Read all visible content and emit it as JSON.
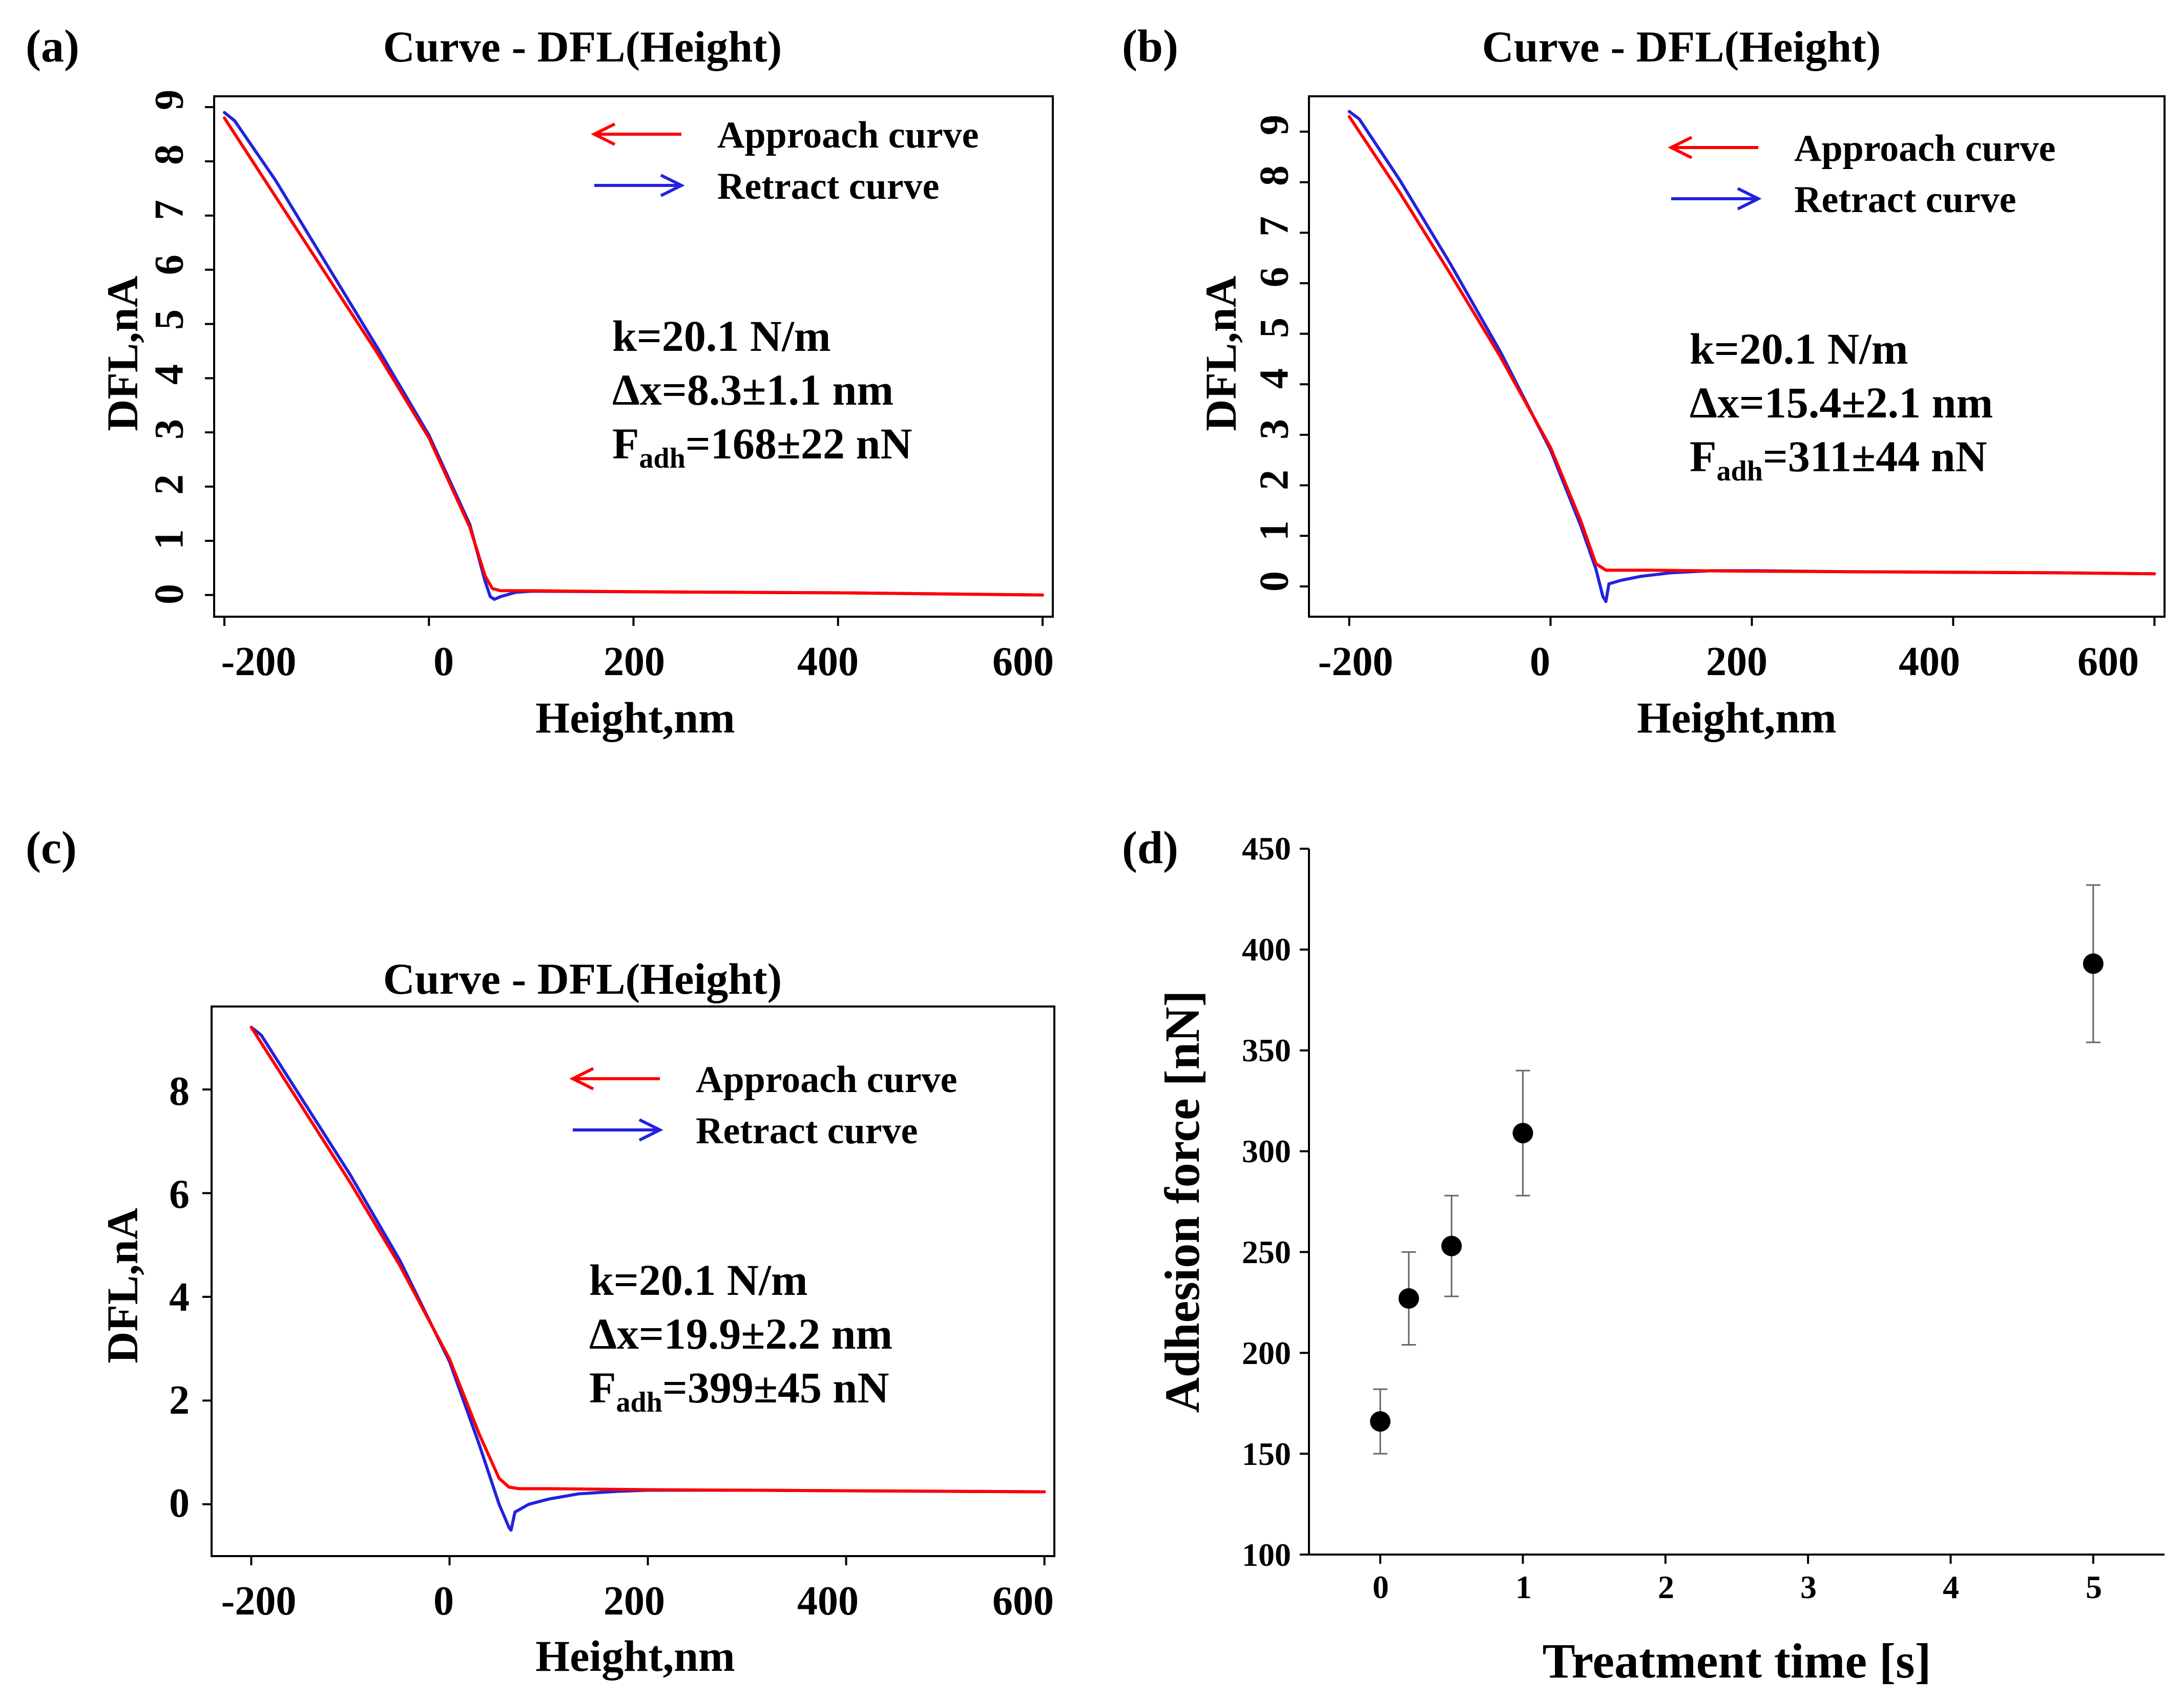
{
  "chart_data": [
    {
      "panel": "(a)",
      "type": "line",
      "title": "Curve - DFL(Height)",
      "xlabel": "Height,nm",
      "ylabel": "DFL,nA",
      "xlim": [
        -210,
        610
      ],
      "ylim": [
        -0.4,
        9.2
      ],
      "xticks": [
        "-200",
        "0",
        "200",
        "400",
        "600"
      ],
      "yticks": [
        "0",
        "1",
        "2",
        "3",
        "4",
        "5",
        "6",
        "7",
        "8",
        "9"
      ],
      "yticks_rotated": true,
      "legend": [
        "Approach curve",
        "Retract curve"
      ],
      "annotation": {
        "k": "k=20.1 N/m",
        "dx": "Δx=8.3±1.1 nm",
        "f_base": "F",
        "f_sub": "adh",
        "f_value": "=168±22 nN"
      },
      "series": [
        {
          "name": "Approach curve",
          "color": "#ff0000",
          "x": [
            -200,
            -150,
            -100,
            -50,
            0,
            40,
            55,
            62,
            70,
            100,
            200,
            300,
            400,
            500,
            600
          ],
          "y": [
            8.8,
            7.35,
            5.9,
            4.45,
            2.9,
            1.25,
            0.35,
            0.12,
            0.08,
            0.08,
            0.06,
            0.05,
            0.04,
            0.02,
            0.0
          ]
        },
        {
          "name": "Retract curve",
          "color": "#2222dd",
          "x": [
            -200,
            -190,
            -150,
            -100,
            -50,
            0,
            40,
            55,
            60,
            64,
            70,
            85,
            100,
            200,
            300,
            400,
            500,
            600
          ],
          "y": [
            8.9,
            8.75,
            7.65,
            6.1,
            4.55,
            2.95,
            1.3,
            0.25,
            -0.03,
            -0.08,
            -0.03,
            0.05,
            0.07,
            0.06,
            0.05,
            0.04,
            0.02,
            0.0
          ]
        }
      ]
    },
    {
      "panel": "(b)",
      "type": "line",
      "title": "Curve - DFL(Height)",
      "xlabel": "Height,nm",
      "ylabel": "DFL,nA",
      "xlim": [
        -240,
        610
      ],
      "ylim": [
        -0.6,
        9.7
      ],
      "xticks": [
        "-200",
        "0",
        "200",
        "400",
        "600"
      ],
      "yticks": [
        "0",
        "1",
        "2",
        "3",
        "4",
        "5",
        "6",
        "7",
        "8",
        "9"
      ],
      "yticks_rotated": true,
      "legend": [
        "Approach curve",
        "Retract curve"
      ],
      "annotation": {
        "k": "k=20.1 N/m",
        "dx": "Δx=15.4±2.1 nm",
        "f_base": "F",
        "f_sub": "adh",
        "f_value": "=311±44 nN"
      },
      "series": [
        {
          "name": "Approach curve",
          "color": "#ff0000",
          "x": [
            -200,
            -150,
            -100,
            -50,
            0,
            30,
            45,
            55,
            100,
            200,
            300,
            400,
            500,
            600
          ],
          "y": [
            9.3,
            7.8,
            6.2,
            4.55,
            2.75,
            1.3,
            0.45,
            0.32,
            0.32,
            0.3,
            0.29,
            0.28,
            0.27,
            0.25
          ]
        },
        {
          "name": "Retract curve",
          "color": "#2222dd",
          "x": [
            -200,
            -190,
            -150,
            -100,
            -50,
            0,
            30,
            45,
            52,
            55,
            58,
            70,
            90,
            120,
            160,
            200,
            300,
            400,
            500,
            600
          ],
          "y": [
            9.4,
            9.25,
            8.05,
            6.4,
            4.65,
            2.7,
            1.2,
            0.35,
            -0.2,
            -0.3,
            0.05,
            0.12,
            0.2,
            0.27,
            0.31,
            0.31,
            0.29,
            0.28,
            0.27,
            0.25
          ]
        }
      ]
    },
    {
      "panel": "(c)",
      "type": "line",
      "title": "Curve - DFL(Height)",
      "xlabel": "Height,nm",
      "ylabel": "DFL,nA",
      "xlim": [
        -240,
        610
      ],
      "ylim": [
        -1.0,
        9.6
      ],
      "xticks": [
        "-200",
        "0",
        "200",
        "400",
        "600"
      ],
      "yticks": [
        "0",
        "2",
        "4",
        "6",
        "8"
      ],
      "yticks_rotated": false,
      "legend": [
        "Approach curve",
        "Retract curve"
      ],
      "annotation": {
        "k": "k=20.1 N/m",
        "dx": "Δx=19.9±2.2 nm",
        "f_base": "F",
        "f_sub": "adh",
        "f_value": "=399±45 nN"
      },
      "series": [
        {
          "name": "Approach curve",
          "color": "#ff0000",
          "x": [
            -200,
            -150,
            -100,
            -50,
            0,
            30,
            50,
            60,
            70,
            100,
            200,
            300,
            400,
            500,
            600
          ],
          "y": [
            9.2,
            7.7,
            6.2,
            4.6,
            2.8,
            1.35,
            0.5,
            0.33,
            0.3,
            0.3,
            0.28,
            0.27,
            0.26,
            0.25,
            0.24
          ]
        },
        {
          "name": "Retract curve",
          "color": "#2222dd",
          "x": [
            -200,
            -190,
            -150,
            -100,
            -50,
            0,
            30,
            50,
            60,
            62,
            66,
            80,
            100,
            130,
            170,
            200,
            300,
            400,
            500,
            600
          ],
          "y": [
            9.2,
            9.05,
            7.85,
            6.35,
            4.7,
            2.75,
            1.15,
            0.0,
            -0.45,
            -0.5,
            -0.15,
            0.0,
            0.1,
            0.2,
            0.25,
            0.27,
            0.27,
            0.26,
            0.25,
            0.24
          ]
        }
      ]
    },
    {
      "panel": "(d)",
      "type": "scatter",
      "xlabel": "Treatment time [s]",
      "ylabel": "Adhesion force [nN]",
      "xlim": [
        -0.5,
        5.5
      ],
      "ylim": [
        100,
        450
      ],
      "xticks": [
        "0",
        "1",
        "2",
        "3",
        "4",
        "5"
      ],
      "yticks": [
        "100",
        "150",
        "200",
        "250",
        "300",
        "350",
        "400",
        "450"
      ],
      "series": [
        {
          "name": "Adhesion force",
          "color": "#000000",
          "x": [
            0,
            0.2,
            0.5,
            1,
            5
          ],
          "y": [
            166,
            227,
            253,
            309,
            393
          ],
          "yerr": [
            16,
            23,
            25,
            31,
            39
          ]
        }
      ]
    }
  ]
}
